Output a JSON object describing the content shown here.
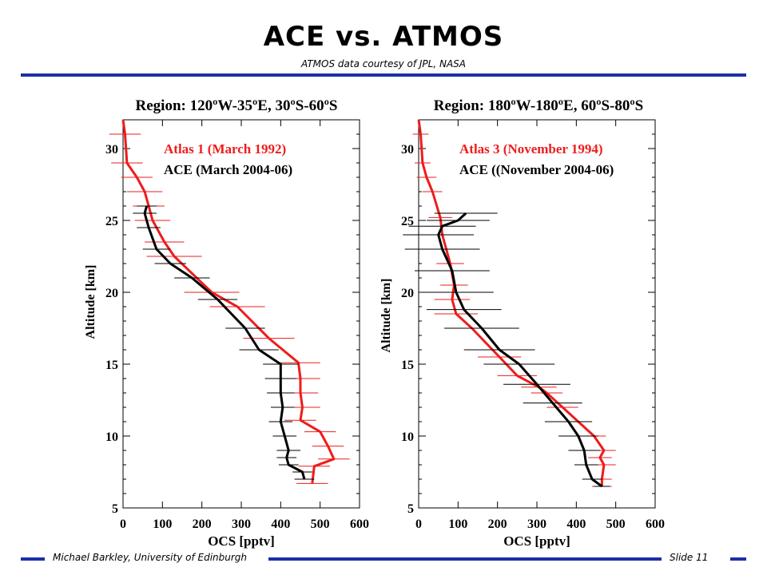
{
  "slide": {
    "title": "ACE vs. ATMOS",
    "subtitle": "ATMOS data courtesy of JPL, NASA",
    "footer_left": "Michael Barkley, University of Edinburgh",
    "footer_right": "Slide 11",
    "accent_color": "#1c2fa8"
  },
  "chart_data": [
    {
      "type": "line",
      "title": "Region: 120ºW-35ºE, 30ºS-60ºS",
      "xlabel": "OCS [pptv]",
      "ylabel": "Altitude [km]",
      "xlim": [
        0,
        600
      ],
      "ylim": [
        5,
        32
      ],
      "xticks": [
        "0",
        "100",
        "200",
        "300",
        "400",
        "500",
        "600"
      ],
      "yticks": [
        "5",
        "10",
        "15",
        "20",
        "25",
        "30"
      ],
      "legend_position": "top-right",
      "series": [
        {
          "name": "Atlas 1 (March 1992)",
          "color": "#ee1c1c",
          "points": [
            [
              0,
              32
            ],
            [
              5,
              31
            ],
            [
              10,
              29
            ],
            [
              35,
              28
            ],
            [
              55,
              27
            ],
            [
              65,
              26
            ],
            [
              75,
              25
            ],
            [
              105,
              23.5
            ],
            [
              130,
              22.5
            ],
            [
              225,
              20
            ],
            [
              290,
              19
            ],
            [
              370,
              16.8
            ],
            [
              445,
              15.1
            ],
            [
              450,
              14
            ],
            [
              450,
              13
            ],
            [
              455,
              12
            ],
            [
              450,
              11.1
            ],
            [
              500,
              10.3
            ],
            [
              520,
              9.3
            ],
            [
              535,
              8.4
            ],
            [
              485,
              7.9
            ],
            [
              480,
              6.7
            ]
          ],
          "error_pptv": [
            0,
            40,
            40,
            40,
            45,
            40,
            45,
            50,
            70,
            70,
            70,
            65,
            55,
            50,
            45,
            45,
            40,
            40,
            40,
            40,
            40,
            40
          ]
        },
        {
          "name": "ACE (March 2004-06)",
          "color": "#000000",
          "points": [
            [
              60,
              26
            ],
            [
              55,
              25.5
            ],
            [
              65,
              24.5
            ],
            [
              85,
              23
            ],
            [
              120,
              22
            ],
            [
              175,
              21
            ],
            [
              240,
              19.5
            ],
            [
              310,
              17.5
            ],
            [
              345,
              16
            ],
            [
              400,
              15
            ],
            [
              400,
              14
            ],
            [
              400,
              13
            ],
            [
              405,
              12
            ],
            [
              400,
              11
            ],
            [
              410,
              10
            ],
            [
              420,
              9
            ],
            [
              415,
              8.5
            ],
            [
              420,
              8
            ],
            [
              455,
              7.5
            ],
            [
              460,
              7
            ]
          ],
          "error_pptv": [
            25,
            30,
            30,
            35,
            40,
            45,
            50,
            50,
            50,
            45,
            40,
            35,
            30,
            30,
            30,
            30,
            25,
            25,
            25,
            25
          ]
        }
      ]
    },
    {
      "type": "line",
      "title": "Region: 180ºW-180ºE, 60ºS-80ºS",
      "xlabel": "OCS [pptv]",
      "ylabel": "Altitude [km]",
      "xlim": [
        0,
        600
      ],
      "ylim": [
        5,
        32
      ],
      "xticks": [
        "0",
        "100",
        "200",
        "300",
        "400",
        "500",
        "600"
      ],
      "yticks": [
        "5",
        "10",
        "15",
        "20",
        "25",
        "30"
      ],
      "legend_position": "top-right",
      "series": [
        {
          "name": "Atlas 3 (November 1994)",
          "color": "#ee1c1c",
          "points": [
            [
              0,
              32
            ],
            [
              5,
              31
            ],
            [
              10,
              29
            ],
            [
              20,
              28
            ],
            [
              35,
              27
            ],
            [
              55,
              25.2
            ],
            [
              60,
              24
            ],
            [
              80,
              22
            ],
            [
              90,
              20.5
            ],
            [
              85,
              19.5
            ],
            [
              95,
              18.5
            ],
            [
              135,
              17.5
            ],
            [
              205,
              15.5
            ],
            [
              250,
              14.2
            ],
            [
              305,
              13.4
            ],
            [
              325,
              13
            ],
            [
              365,
              12
            ],
            [
              405,
              11
            ],
            [
              445,
              10
            ],
            [
              470,
              9
            ],
            [
              460,
              8.5
            ],
            [
              470,
              8
            ],
            [
              465,
              7
            ],
            [
              465,
              6.5
            ]
          ],
          "error_pptv": [
            0,
            20,
            20,
            25,
            25,
            30,
            30,
            35,
            35,
            45,
            55,
            60,
            55,
            50,
            45,
            40,
            40,
            35,
            30,
            30,
            30,
            30,
            25,
            25
          ]
        },
        {
          "name": "ACE ((November 2004-06)",
          "color": "#000000",
          "points": [
            [
              120,
              25.5
            ],
            [
              100,
              25
            ],
            [
              60,
              24.6
            ],
            [
              50,
              24
            ],
            [
              60,
              23
            ],
            [
              85,
              21.5
            ],
            [
              95,
              20
            ],
            [
              115,
              18.8
            ],
            [
              160,
              17.5
            ],
            [
              205,
              16
            ],
            [
              255,
              15
            ],
            [
              300,
              13.6
            ],
            [
              340,
              12.3
            ],
            [
              380,
              11
            ],
            [
              405,
              10
            ],
            [
              420,
              9
            ],
            [
              425,
              8
            ],
            [
              440,
              7
            ],
            [
              465,
              6.5
            ]
          ],
          "error_pptv": [
            80,
            80,
            85,
            90,
            95,
            95,
            95,
            95,
            95,
            90,
            90,
            85,
            75,
            60,
            50,
            40,
            30,
            25,
            20
          ]
        }
      ]
    }
  ]
}
